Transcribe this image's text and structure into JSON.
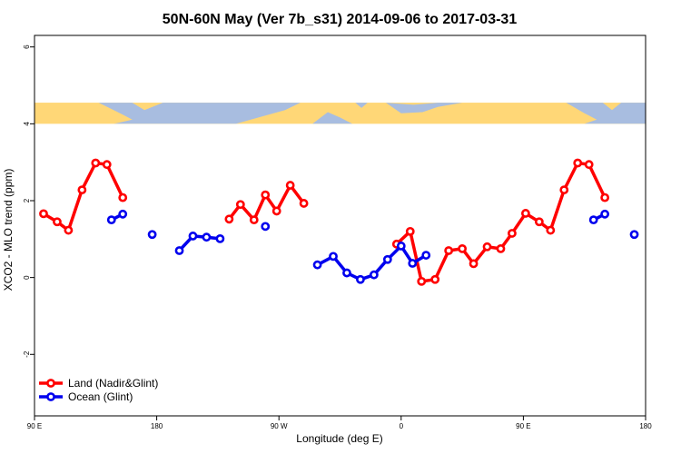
{
  "chart_data": {
    "type": "line",
    "title": "50N-60N May (Ver 7b_s31)   2014-09-06 to 2017-03-31",
    "xlabel": "Longitude (deg E)",
    "ylabel": "XCO2 - MLO trend (ppm)",
    "xlim": [
      -90,
      180
    ],
    "ylim": [
      -3.6,
      6.3
    ],
    "x_ticks": [
      {
        "value": -90,
        "label": "90 E"
      },
      {
        "value": -36,
        "label": "180"
      },
      {
        "value": 18,
        "label": "90 W"
      },
      {
        "value": 72,
        "label": "0"
      },
      {
        "value": 126,
        "label": "90 E"
      },
      {
        "value": 180,
        "label": "180"
      }
    ],
    "y_ticks": [
      {
        "value": -2,
        "label": "-2"
      },
      {
        "value": 0,
        "label": "0"
      },
      {
        "value": 2,
        "label": "2"
      },
      {
        "value": 4,
        "label": "4"
      },
      {
        "value": 6,
        "label": "6"
      }
    ],
    "map_strip": {
      "y_range": [
        4.0,
        4.55
      ],
      "ocean_color": "#a8bde0",
      "land_color": "#ffd777"
    },
    "legend_position": "bottom-left",
    "series": [
      {
        "name": "Land (Nadir&Glint)",
        "color": "#ff0000",
        "segments": [
          [
            [
              -86,
              1.66
            ],
            [
              -80,
              1.45
            ],
            [
              -75,
              1.23
            ],
            [
              -69,
              2.28
            ],
            [
              -63,
              2.98
            ],
            [
              -58,
              2.94
            ],
            [
              -51,
              2.08
            ]
          ],
          [
            [
              -4,
              1.52
            ],
            [
              1,
              1.9
            ],
            [
              7,
              1.5
            ],
            [
              12,
              2.15
            ],
            [
              17,
              1.73
            ],
            [
              23,
              2.4
            ],
            [
              29,
              1.93
            ]
          ],
          [
            [
              70,
              0.87
            ],
            [
              76,
              1.2
            ],
            [
              81,
              -0.1
            ],
            [
              87,
              -0.05
            ],
            [
              93,
              0.7
            ],
            [
              99,
              0.75
            ],
            [
              104,
              0.36
            ],
            [
              110,
              0.8
            ],
            [
              116,
              0.75
            ],
            [
              121,
              1.15
            ],
            [
              127,
              1.67
            ],
            [
              133,
              1.45
            ],
            [
              138,
              1.23
            ],
            [
              144,
              2.28
            ],
            [
              150,
              2.98
            ],
            [
              155,
              2.94
            ],
            [
              162,
              2.08
            ]
          ]
        ]
      },
      {
        "name": "Ocean (Glint)",
        "color": "#0000ee",
        "segments": [
          [
            [
              -56,
              1.5
            ],
            [
              -51,
              1.65
            ]
          ],
          [
            [
              -38,
              1.12
            ]
          ],
          [
            [
              -26,
              0.7
            ],
            [
              -20,
              1.08
            ],
            [
              -14,
              1.05
            ],
            [
              -8,
              1.01
            ]
          ],
          [
            [
              12,
              1.33
            ]
          ],
          [
            [
              35,
              0.33
            ],
            [
              42,
              0.55
            ],
            [
              48,
              0.12
            ],
            [
              54,
              -0.05
            ],
            [
              60,
              0.07
            ],
            [
              66,
              0.47
            ],
            [
              72,
              0.82
            ],
            [
              77,
              0.37
            ],
            [
              83,
              0.58
            ]
          ],
          [
            [
              157,
              1.5
            ],
            [
              162,
              1.65
            ]
          ],
          [
            [
              175,
              1.12
            ]
          ]
        ]
      }
    ]
  }
}
